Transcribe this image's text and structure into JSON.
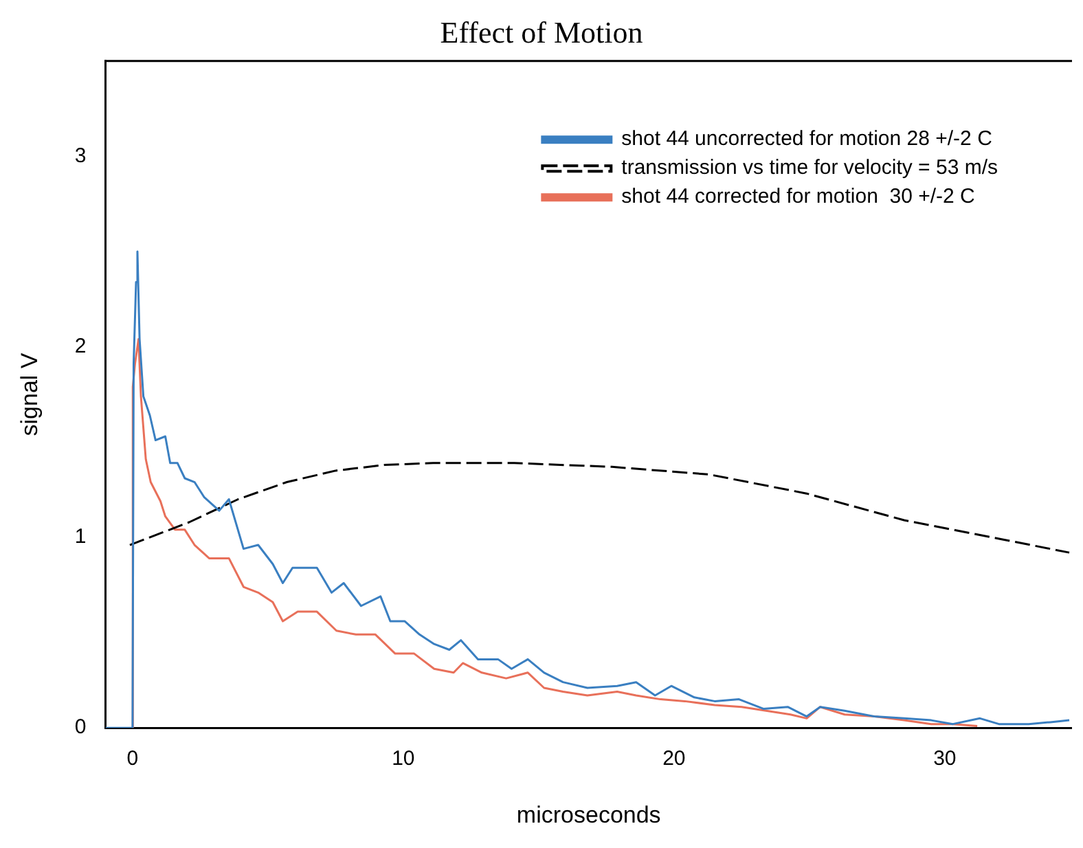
{
  "chart_data": {
    "type": "line",
    "title": "Effect of Motion",
    "xlabel": "microseconds",
    "ylabel": "signal V",
    "xlim": [
      -1,
      34.7
    ],
    "xticks": [
      0,
      10,
      20,
      30
    ],
    "ylim": [
      0,
      3.5
    ],
    "yticks": [
      0,
      1,
      2,
      3
    ],
    "grid": false,
    "legend": "top right",
    "marker": "none",
    "series": [
      {
        "name": "shot 44 uncorrected for motion 28 +/-2 C",
        "color": "#3a7fc1",
        "line_style": "solid",
        "x": [
          -1,
          0,
          0.04,
          0.13,
          0.18,
          0.26,
          0.4,
          0.64,
          0.85,
          1.21,
          1.39,
          1.66,
          1.93,
          2.29,
          2.65,
          3.2,
          3.56,
          4.1,
          4.64,
          5.18,
          5.55,
          5.91,
          6.81,
          7.35,
          7.8,
          8.44,
          9.16,
          9.52,
          10.05,
          10.6,
          11.14,
          11.7,
          12.13,
          12.76,
          13.5,
          14.0,
          14.6,
          15.2,
          15.9,
          16.8,
          17.9,
          18.6,
          19.3,
          19.9,
          20.75,
          21.5,
          22.4,
          23.3,
          24.2,
          24.9,
          25.4,
          26.3,
          27.4,
          28.5,
          29.5,
          30.3,
          31.3,
          32.0,
          33.1,
          33.9,
          34.6
        ],
        "values": [
          0,
          0,
          1.91,
          2.34,
          2.5,
          2.04,
          1.74,
          1.64,
          1.51,
          1.53,
          1.39,
          1.39,
          1.31,
          1.29,
          1.21,
          1.14,
          1.2,
          0.94,
          0.96,
          0.86,
          0.76,
          0.84,
          0.84,
          0.71,
          0.76,
          0.64,
          0.69,
          0.56,
          0.56,
          0.49,
          0.44,
          0.41,
          0.46,
          0.36,
          0.36,
          0.31,
          0.36,
          0.29,
          0.24,
          0.21,
          0.22,
          0.24,
          0.17,
          0.22,
          0.16,
          0.14,
          0.15,
          0.1,
          0.11,
          0.06,
          0.11,
          0.09,
          0.06,
          0.05,
          0.04,
          0.02,
          0.05,
          0.02,
          0.02,
          0.03,
          0.04
        ]
      },
      {
        "name": "transmission vs time for velocity = 53 m/s",
        "color": "#000000",
        "line_style": "dashed",
        "x": [
          -0.1,
          2.1,
          3.9,
          5.7,
          7.5,
          9.3,
          11.1,
          14.1,
          17.7,
          21.3,
          24.9,
          28.5,
          32.1,
          34.6
        ],
        "values": [
          0.96,
          1.08,
          1.2,
          1.29,
          1.35,
          1.38,
          1.39,
          1.39,
          1.37,
          1.33,
          1.23,
          1.09,
          0.99,
          0.92
        ]
      },
      {
        "name": "shot 44 corrected for motion  30 +/-2 C",
        "color": "#e8705a",
        "line_style": "solid",
        "x": [
          0,
          0.01,
          0.09,
          0.22,
          0.31,
          0.49,
          0.67,
          1.03,
          1.21,
          1.57,
          1.93,
          2.29,
          2.83,
          3.56,
          4.1,
          4.64,
          5.18,
          5.55,
          6.1,
          6.81,
          7.53,
          8.25,
          8.97,
          9.7,
          10.4,
          11.14,
          11.86,
          12.2,
          12.9,
          13.8,
          14.6,
          15.2,
          15.9,
          16.8,
          17.9,
          18.6,
          19.5,
          20.4,
          21.5,
          22.5,
          23.4,
          24.3,
          24.9,
          25.4,
          26.3,
          27.4,
          28.5,
          29.5,
          30.3,
          31.2
        ],
        "values": [
          0,
          1.79,
          1.91,
          2.04,
          1.74,
          1.41,
          1.29,
          1.19,
          1.11,
          1.04,
          1.04,
          0.96,
          0.89,
          0.89,
          0.74,
          0.71,
          0.66,
          0.56,
          0.61,
          0.61,
          0.51,
          0.49,
          0.49,
          0.39,
          0.39,
          0.31,
          0.29,
          0.34,
          0.29,
          0.26,
          0.29,
          0.21,
          0.19,
          0.17,
          0.19,
          0.17,
          0.15,
          0.14,
          0.12,
          0.11,
          0.09,
          0.07,
          0.05,
          0.11,
          0.07,
          0.06,
          0.04,
          0.02,
          0.02,
          0.01
        ]
      }
    ]
  }
}
